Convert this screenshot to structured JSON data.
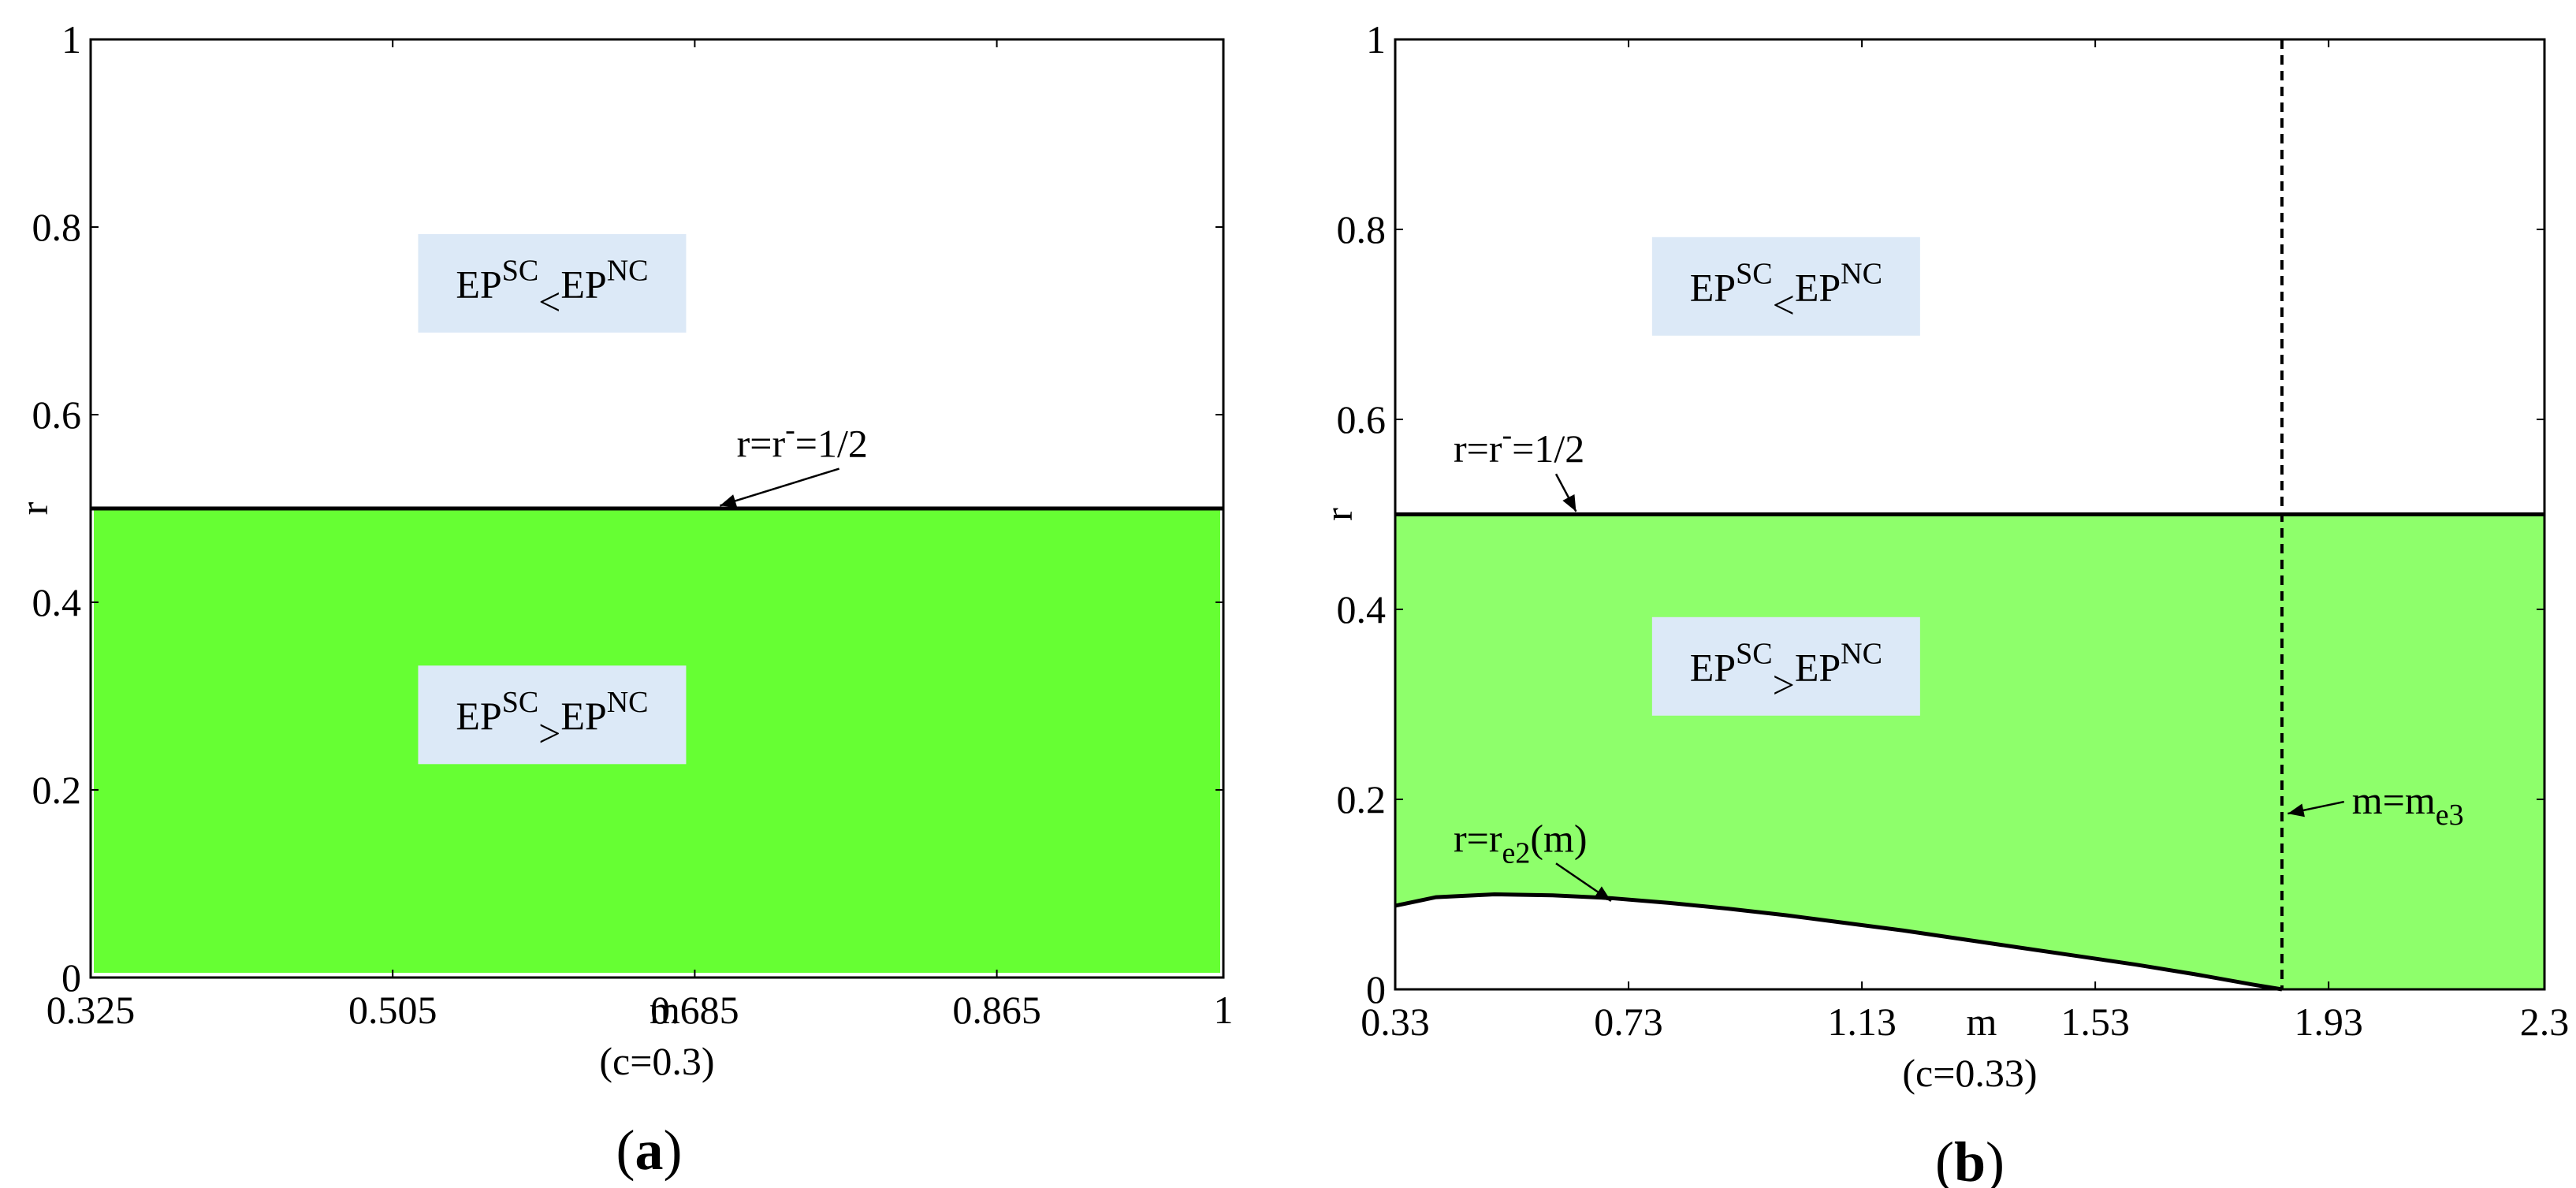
{
  "chart_data": [
    {
      "panel": "a",
      "type": "area",
      "panel_label": "a",
      "xlabel": "m",
      "xlabel_sub": "(c=0.3)",
      "ylabel": "r",
      "xlim": [
        0.325,
        1
      ],
      "ylim": [
        0,
        1
      ],
      "xticks": [
        0.325,
        0.505,
        0.685,
        0.865,
        1
      ],
      "xtick_labels": [
        "0.325",
        "0.505",
        "0.685",
        "0.865",
        "1"
      ],
      "yticks": [
        0,
        0.2,
        0.4,
        0.6,
        0.8,
        1
      ],
      "ytick_labels": [
        "0",
        "0.2",
        "0.4",
        "0.6",
        "0.8",
        "1"
      ],
      "fill_color": "#66ff33",
      "regions": [
        {
          "label_main": "EP",
          "label_sup1": "SC",
          "label_op": "<",
          "label_main2": "EP",
          "label_sup2": "NC",
          "x": 0.6,
          "y": 0.74,
          "bg": "#dce9f7"
        },
        {
          "label_main": "EP",
          "label_sup1": "SC",
          "label_op": ">",
          "label_main2": "EP",
          "label_sup2": "NC",
          "x": 0.6,
          "y": 0.28,
          "bg": "#dce9f7"
        }
      ],
      "series": [
        {
          "name": "r=r-=1/2",
          "x": [
            0.325,
            1
          ],
          "y": [
            0.5,
            0.5
          ]
        }
      ],
      "annotations": [
        {
          "text_main": "r=r",
          "text_sup": "-",
          "text_tail": "=1/2",
          "text_x": 0.71,
          "text_y": 0.555,
          "arrow_to_x": 0.7,
          "arrow_to_y": 0.503
        }
      ]
    },
    {
      "panel": "b",
      "type": "area",
      "panel_label": "b",
      "xlabel": "m",
      "xlabel_sub": "(c=0.33)",
      "ylabel": "r",
      "xlim": [
        0.33,
        2.3
      ],
      "ylim": [
        0,
        1
      ],
      "xticks": [
        0.33,
        0.73,
        1.13,
        1.53,
        1.93,
        2.3
      ],
      "xtick_labels": [
        "0.33",
        "0.73",
        "1.13",
        "1.53",
        "1.93",
        "2.3"
      ],
      "yticks": [
        0,
        0.2,
        0.4,
        0.6,
        0.8,
        1
      ],
      "ytick_labels": [
        "0",
        "0.2",
        "0.4",
        "0.6",
        "0.8",
        "1"
      ],
      "fill_color": "#8eff6b",
      "me3": 1.85,
      "regions": [
        {
          "label_main": "EP",
          "label_sup1": "SC",
          "label_op": "<",
          "label_main2": "EP",
          "label_sup2": "NC",
          "x": 1.0,
          "y": 0.74,
          "bg": "#dce9f7"
        },
        {
          "label_main": "EP",
          "label_sup1": "SC",
          "label_op": ">",
          "label_main2": "EP",
          "label_sup2": "NC",
          "x": 1.0,
          "y": 0.34,
          "bg": "#dce9f7"
        }
      ],
      "series": [
        {
          "name": "r=r-=1/2",
          "x": [
            0.33,
            2.3
          ],
          "y": [
            0.5,
            0.5
          ]
        },
        {
          "name": "r=re2(m)",
          "x": [
            0.33,
            0.4,
            0.5,
            0.6,
            0.7,
            0.8,
            0.9,
            1.0,
            1.1,
            1.2,
            1.3,
            1.4,
            1.5,
            1.6,
            1.7,
            1.8,
            1.85
          ],
          "y": [
            0.088,
            0.097,
            0.1,
            0.099,
            0.096,
            0.091,
            0.085,
            0.078,
            0.07,
            0.062,
            0.053,
            0.044,
            0.035,
            0.026,
            0.016,
            0.005,
            0.0
          ]
        },
        {
          "name": "m=me3",
          "x": [
            1.85,
            1.85
          ],
          "y": [
            0,
            1
          ]
        }
      ],
      "annotations": [
        {
          "text_main": "r=r",
          "text_sup": "-",
          "text_tail": "=1/2",
          "text_x": 0.43,
          "text_y": 0.555,
          "arrow_to_x": 0.64,
          "arrow_to_y": 0.503
        },
        {
          "text_main": "r=r",
          "text_sub": "e2",
          "text_tail": "(m)",
          "text_x": 0.43,
          "text_y": 0.145,
          "arrow_to_x": 0.7,
          "arrow_to_y": 0.093
        },
        {
          "text_main": "m=m",
          "text_sub": "e3",
          "text_tail": "",
          "text_x": 1.97,
          "text_y": 0.185,
          "arrow_to_x": 1.86,
          "arrow_to_y": 0.185
        }
      ]
    }
  ]
}
